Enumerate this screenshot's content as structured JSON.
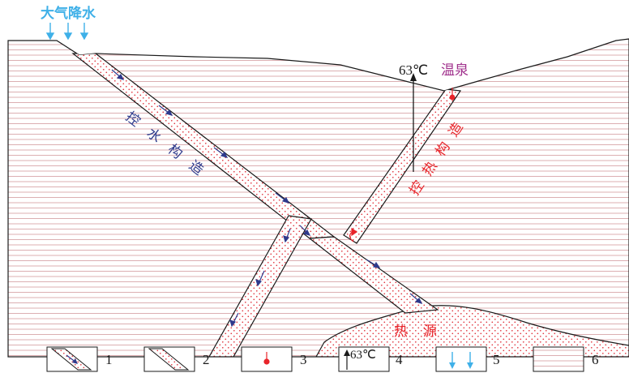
{
  "labels": {
    "precipitation": "大气降水",
    "hot_spring": "温泉",
    "water_control": [
      "控",
      "水",
      "构",
      "造"
    ],
    "heat_control": [
      "控",
      "热",
      "构",
      "造"
    ],
    "heat_source": [
      "热",
      "源"
    ],
    "temperature": "63℃"
  },
  "legend": {
    "items": [
      {
        "number": "1",
        "icon": "fault-with-flow-arrow"
      },
      {
        "number": "2",
        "icon": "fault-zone-dotted"
      },
      {
        "number": "3",
        "icon": "spring-point"
      },
      {
        "number": "4",
        "icon": "temperature-arrow",
        "text": "63℃"
      },
      {
        "number": "5",
        "icon": "precipitation-arrows"
      },
      {
        "number": "6",
        "icon": "layered-rock"
      }
    ]
  },
  "colors": {
    "precipitation": "#3fb0e8",
    "water_text": "#2e3a8c",
    "heat_text": "#e8242a",
    "spring_text": "#a0308c",
    "dots": "#e0303a",
    "strata": "#d8a6aa",
    "outline": "#1a1a1a"
  }
}
